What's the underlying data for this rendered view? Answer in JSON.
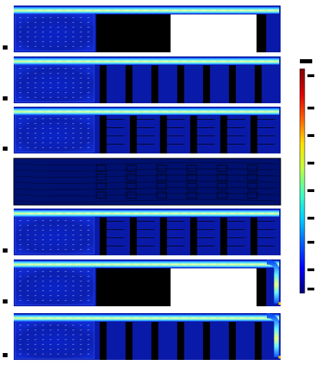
{
  "figure": {
    "panels": [
      {
        "id": "a",
        "mode": "channel",
        "walls": "sparse",
        "label": ""
      },
      {
        "id": "b",
        "mode": "channel",
        "walls": "many",
        "label": ""
      },
      {
        "id": "c",
        "mode": "channel",
        "walls": "grid",
        "label": ""
      },
      {
        "id": "d",
        "mode": "outline",
        "walls": "grid",
        "label": ""
      },
      {
        "id": "e",
        "mode": "channel",
        "walls": "grid",
        "label": ""
      },
      {
        "id": "f",
        "mode": "bend",
        "walls": "sparse",
        "label": ""
      },
      {
        "id": "g",
        "mode": "bend",
        "walls": "many",
        "label": ""
      }
    ],
    "colorbar": {
      "colors": [
        "#00007a",
        "#0000ff",
        "#0060ff",
        "#00d0ff",
        "#40ffc0",
        "#c0ff40",
        "#ffe000",
        "#ff6000",
        "#e00000",
        "#800000"
      ]
    },
    "colors": {
      "field": "#0a1aa8",
      "field_dark": "#00106e",
      "wall": "#000000",
      "jet": "#5ff0ff",
      "jet_core": "#e8ff80",
      "arrow": "#ffffff"
    }
  }
}
